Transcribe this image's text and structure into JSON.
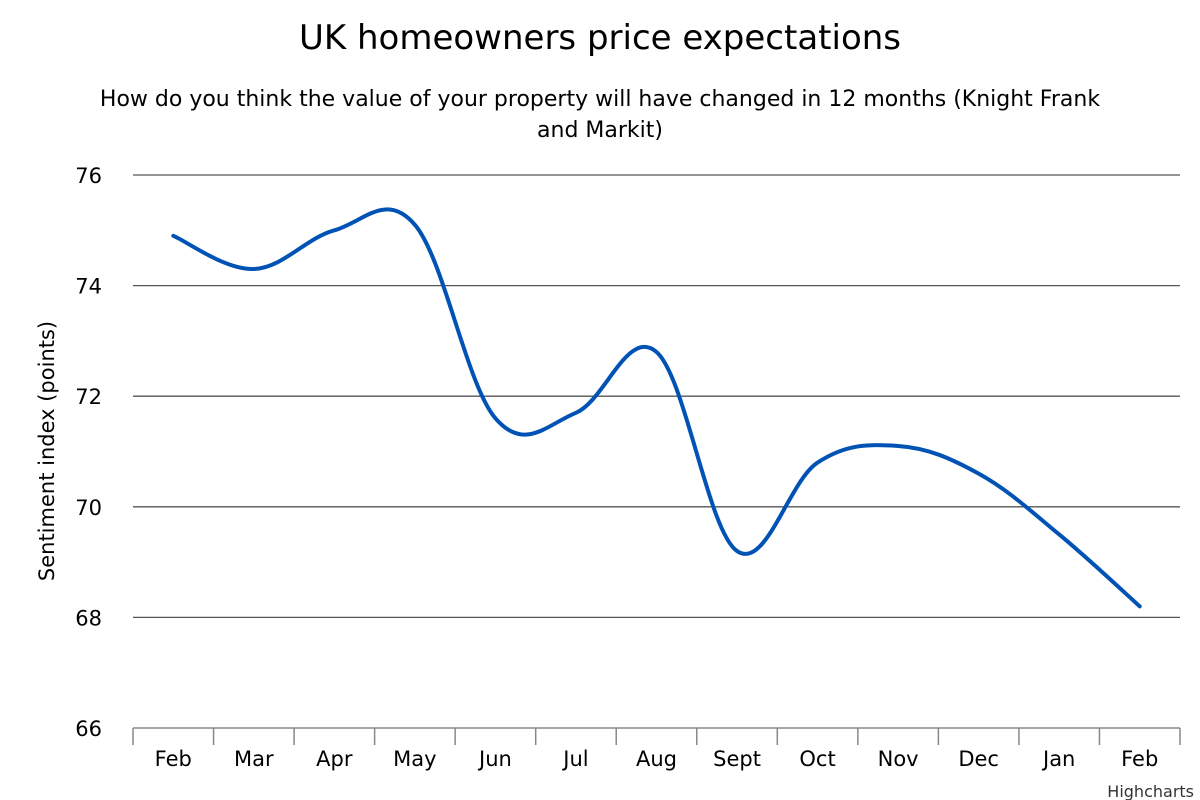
{
  "chart_data": {
    "type": "line",
    "title": "UK homeowners price expectations",
    "subtitle_line1": "How do you think the value of your property will have changed in 12 months (Knight Frank",
    "subtitle_line2": "and Markit)",
    "xlabel": "",
    "ylabel": "Sentiment index (points)",
    "categories": [
      "Feb",
      "Mar",
      "Apr",
      "May",
      "Jun",
      "Jul",
      "Aug",
      "Sept",
      "Oct",
      "Nov",
      "Dec",
      "Jan",
      "Feb"
    ],
    "series": [
      {
        "name": "",
        "values": [
          74.9,
          74.3,
          75.0,
          75.1,
          71.6,
          71.7,
          72.8,
          69.2,
          70.8,
          71.1,
          70.6,
          69.5,
          68.2
        ],
        "color": "#0052B4"
      }
    ],
    "ylim": [
      66,
      76
    ],
    "yticks": [
      66,
      68,
      70,
      72,
      74,
      76
    ],
    "grid": true,
    "legend": "none",
    "credit": "Highcharts"
  }
}
